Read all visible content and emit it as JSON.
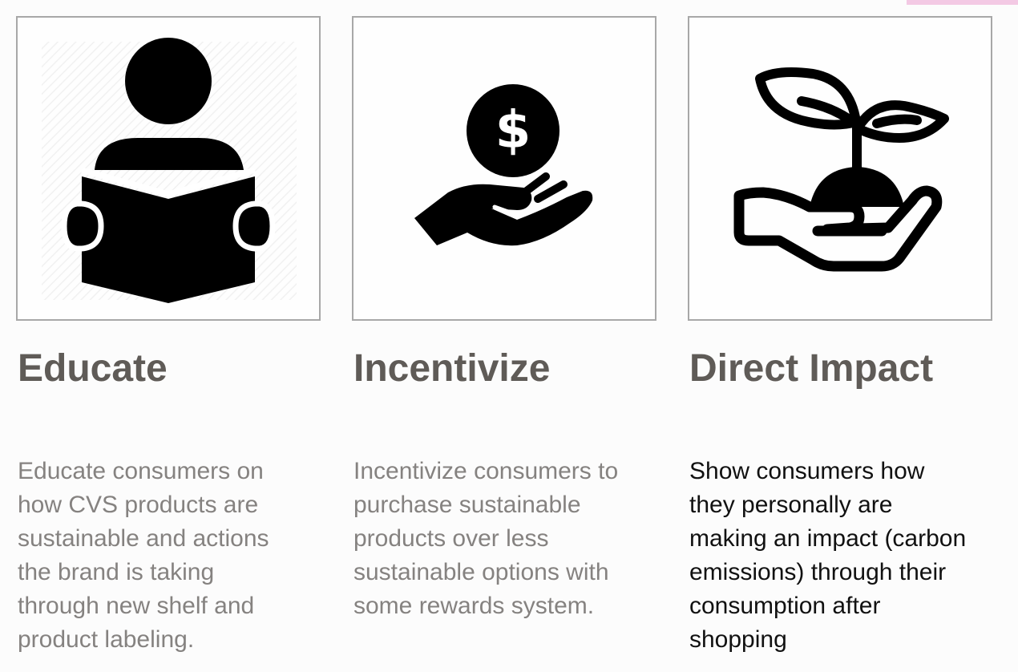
{
  "colors": {
    "title": "#5f5b57",
    "description": "#858280",
    "description_emphasis": "#111111",
    "border": "#a8a8a8",
    "accent": "#f3c9e4"
  },
  "cards": [
    {
      "icon": "person-reading-book-icon",
      "title": "Educate",
      "description_lines": [
        "Educate consumers on",
        "how CVS products are",
        "sustainable and actions",
        "the brand is taking",
        "through new shelf and",
        "product labeling."
      ]
    },
    {
      "icon": "hand-holding-dollar-coin-icon",
      "title": "Incentivize",
      "description_lines": [
        "Incentivize consumers to",
        "purchase sustainable",
        "products over less",
        "sustainable options with",
        "some rewards system."
      ]
    },
    {
      "icon": "hand-holding-plant-sprout-icon",
      "title": "Direct Impact",
      "description_lines": [
        "Show consumers how",
        "they personally are",
        "making an impact (carbon",
        "emissions) through their",
        "consumption after",
        "shopping"
      ]
    }
  ]
}
